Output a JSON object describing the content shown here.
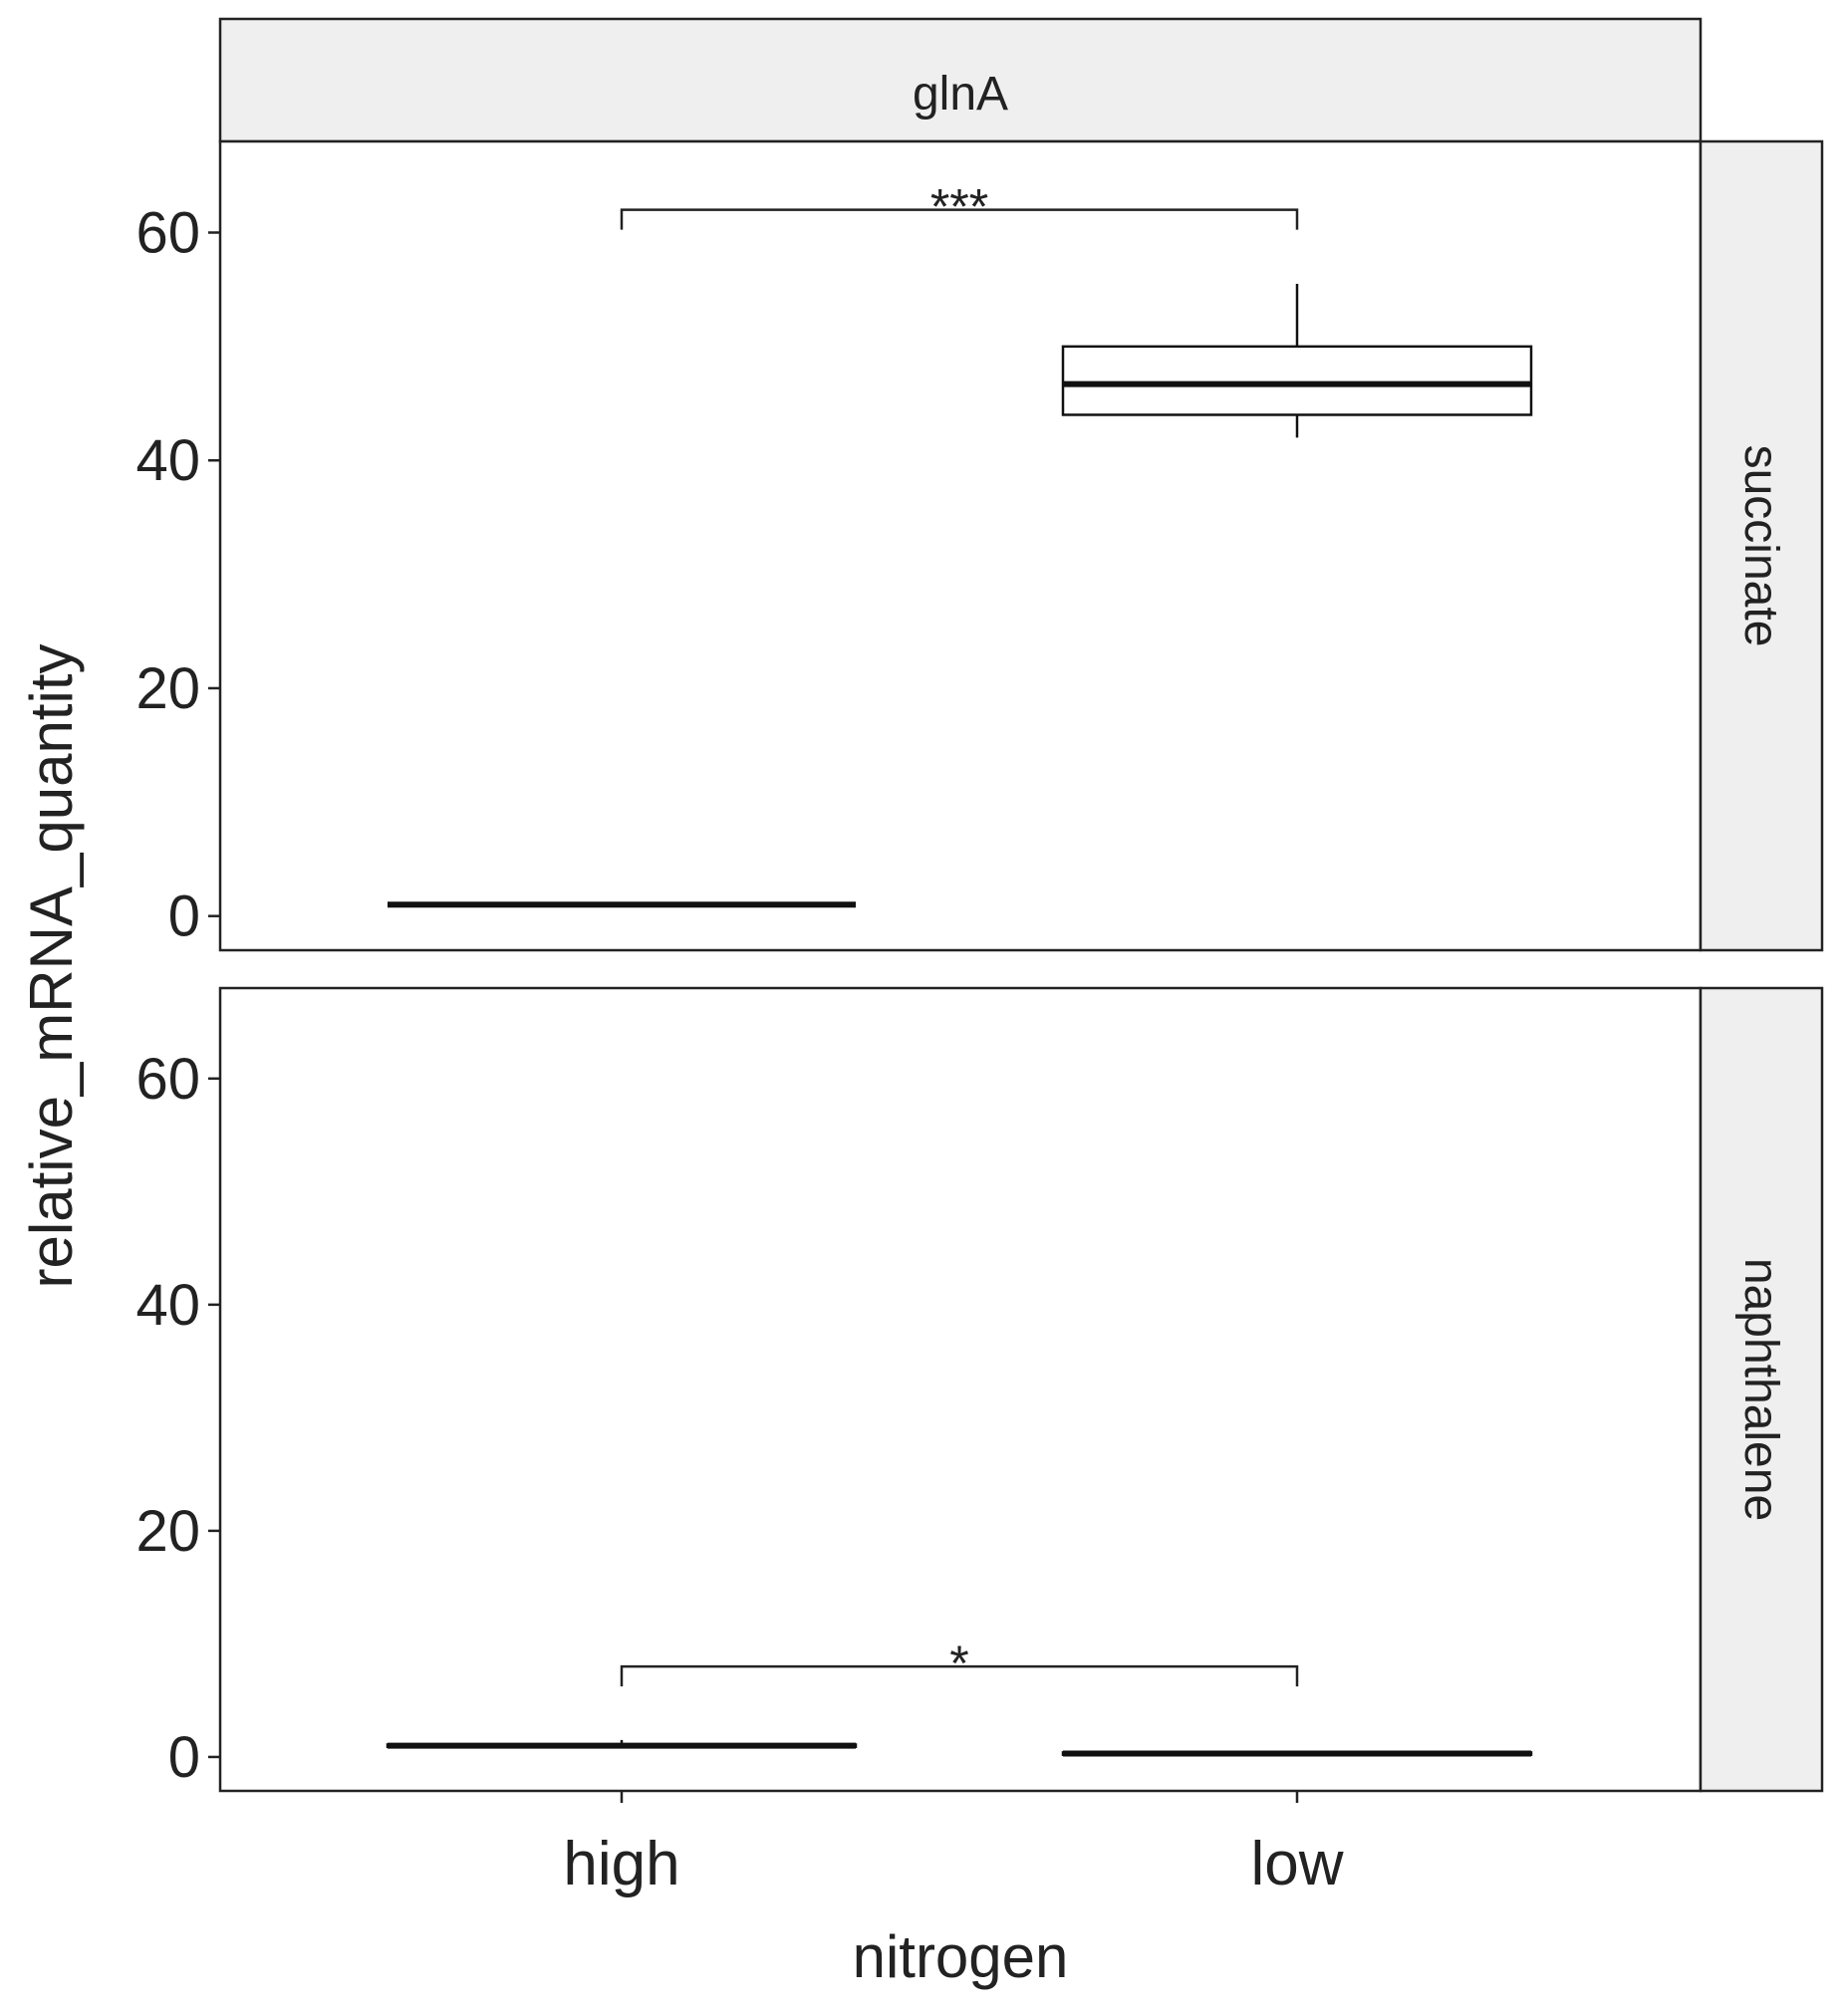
{
  "chart_data": {
    "type": "boxplot",
    "column_facet": "glnA",
    "xlabel": "nitrogen",
    "ylabel": "relative_mRNA_quantity",
    "categories": [
      "high",
      "low"
    ],
    "y_ticks": [
      0,
      20,
      40,
      60
    ],
    "ylim": [
      -3,
      68
    ],
    "grid": false,
    "panels": [
      {
        "row_facet": "succinate",
        "boxes": [
          {
            "category": "high",
            "min": 1,
            "q1": 1,
            "median": 1,
            "q3": 1,
            "max": 1
          },
          {
            "category": "low",
            "min": 42,
            "q1": 44,
            "median": 46.7,
            "q3": 50,
            "max": 55.5
          }
        ],
        "significance": {
          "from": "high",
          "to": "low",
          "label": "***",
          "y": 62
        }
      },
      {
        "row_facet": "naphthalene",
        "boxes": [
          {
            "category": "high",
            "min": 0.9,
            "q1": 0.9,
            "median": 1,
            "q3": 1.1,
            "max": 1.5
          },
          {
            "category": "low",
            "min": 0.2,
            "q1": 0.2,
            "median": 0.3,
            "q3": 0.4,
            "max": 0.4
          }
        ],
        "significance": {
          "from": "high",
          "to": "low",
          "label": "*",
          "y": 8
        }
      }
    ]
  }
}
